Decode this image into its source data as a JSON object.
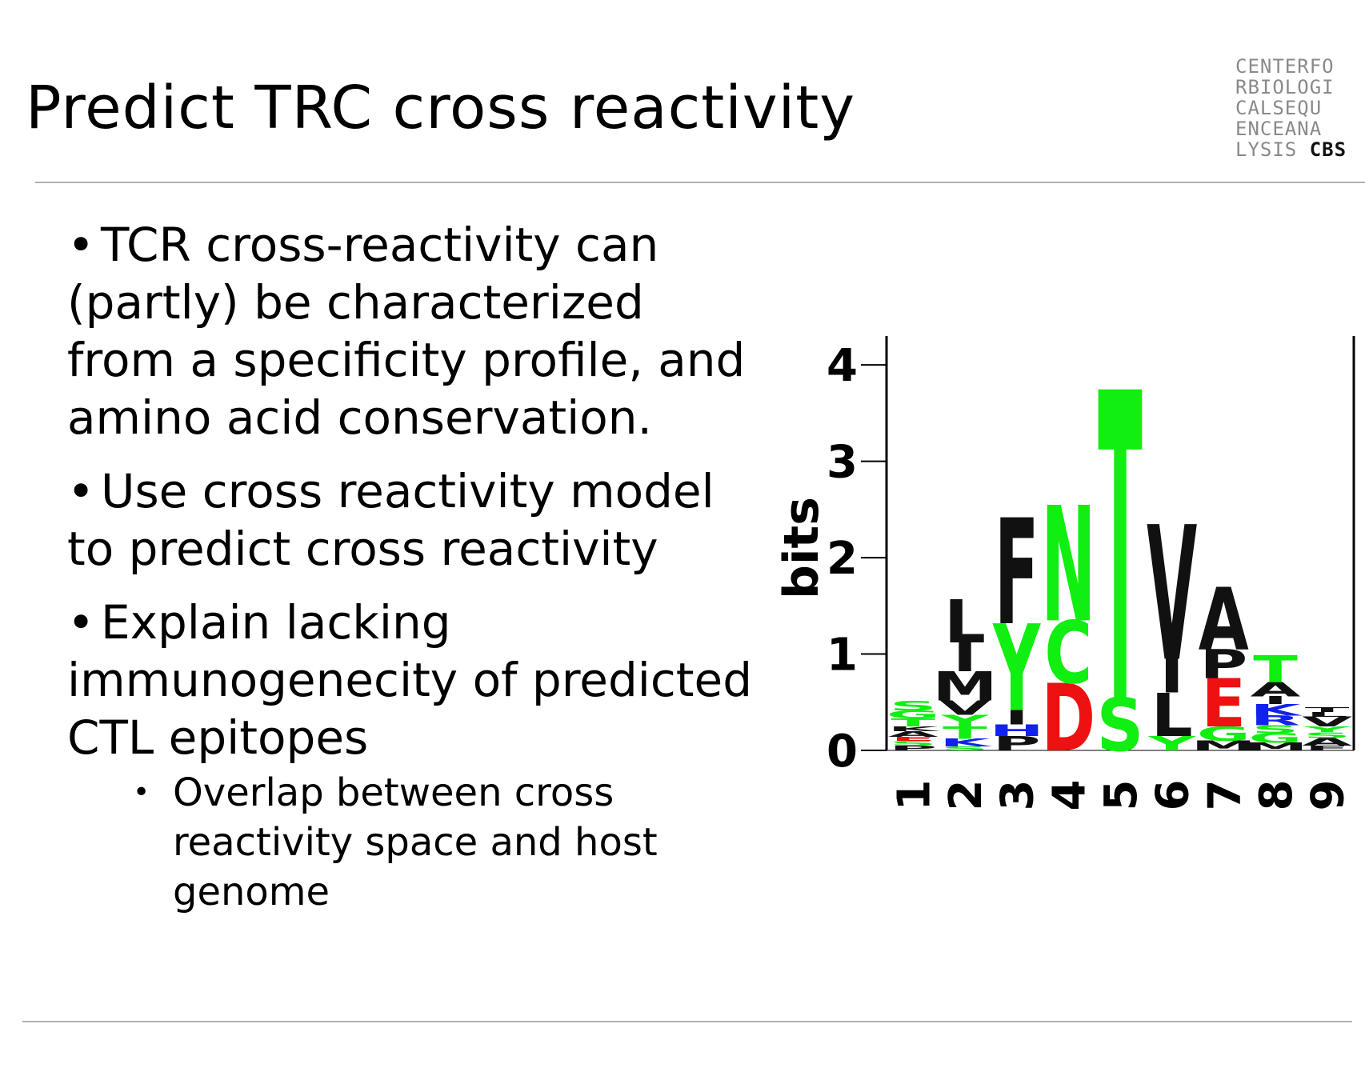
{
  "slide": {
    "title": "Predict TRC cross reactivity",
    "logo_lines": [
      "CENTERFO",
      "RBIOLOGI",
      "CALSEQU",
      "ENCEANA",
      "LYSIS"
    ],
    "logo_brand": "CBS"
  },
  "bullets": [
    {
      "text": "TCR cross-reactivity can (partly) be characterized from a specificity profile, and amino acid conservation."
    },
    {
      "text": "Use cross reactivity model to predict cross reactivity"
    },
    {
      "text": "Explain lacking immunogenecity of predicted CTL epitopes"
    }
  ],
  "sub_bullet": {
    "text": "Overlap between cross reactivity space and host genome"
  },
  "chart_data": {
    "type": "sequence_logo",
    "ylabel": "bits",
    "ylim": [
      0,
      4.3
    ],
    "yticks": [
      0,
      1,
      2,
      3,
      4
    ],
    "positions": [
      "1",
      "2",
      "3",
      "4",
      "5",
      "6",
      "7",
      "8",
      "9"
    ],
    "colors": {
      "green": "#11ee11",
      "black": "#111111",
      "red": "#ee1111",
      "blue": "#1122ee",
      "orange": "#ee8800",
      "purple": "#aa22aa"
    },
    "stacks": [
      {
        "position": "1",
        "letters": [
          {
            "aa": "P",
            "bits": 0.05,
            "color": "black"
          },
          {
            "aa": "S",
            "bits": 0.05,
            "color": "green"
          },
          {
            "aa": "E",
            "bits": 0.04,
            "color": "red"
          },
          {
            "aa": "A",
            "bits": 0.06,
            "color": "black"
          },
          {
            "aa": "K",
            "bits": 0.05,
            "color": "black"
          },
          {
            "aa": "T",
            "bits": 0.08,
            "color": "green"
          },
          {
            "aa": "G",
            "bits": 0.08,
            "color": "green"
          },
          {
            "aa": "S",
            "bits": 0.1,
            "color": "green"
          }
        ]
      },
      {
        "position": "2",
        "letters": [
          {
            "aa": "S",
            "bits": 0.04,
            "color": "green"
          },
          {
            "aa": "K",
            "bits": 0.08,
            "color": "blue"
          },
          {
            "aa": "T",
            "bits": 0.13,
            "color": "green"
          },
          {
            "aa": "Y",
            "bits": 0.12,
            "color": "green"
          },
          {
            "aa": "V",
            "bits": 0.15,
            "color": "black"
          },
          {
            "aa": "M",
            "bits": 0.3,
            "color": "black"
          },
          {
            "aa": "I",
            "bits": 0.3,
            "color": "black"
          },
          {
            "aa": "L",
            "bits": 0.45,
            "color": "black"
          }
        ]
      },
      {
        "position": "3",
        "letters": [
          {
            "aa": "P",
            "bits": 0.15,
            "color": "black"
          },
          {
            "aa": "H",
            "bits": 0.12,
            "color": "blue"
          },
          {
            "aa": "I",
            "bits": 0.15,
            "color": "black"
          },
          {
            "aa": "Y",
            "bits": 0.9,
            "color": "green"
          },
          {
            "aa": "F",
            "bits": 1.1,
            "color": "black"
          }
        ]
      },
      {
        "position": "4",
        "letters": [
          {
            "aa": "D",
            "bits": 0.7,
            "color": "red"
          },
          {
            "aa": "C",
            "bits": 0.65,
            "color": "green"
          },
          {
            "aa": "N",
            "bits": 1.2,
            "color": "green"
          }
        ]
      },
      {
        "position": "5",
        "letters": [
          {
            "aa": "S",
            "bits": 0.55,
            "color": "green"
          },
          {
            "aa": "T",
            "bits": 3.2,
            "color": "green"
          }
        ]
      },
      {
        "position": "6",
        "letters": [
          {
            "aa": "Y",
            "bits": 0.15,
            "color": "green"
          },
          {
            "aa": "L",
            "bits": 0.45,
            "color": "black"
          },
          {
            "aa": "I",
            "bits": 0.35,
            "color": "black"
          },
          {
            "aa": "V",
            "bits": 1.4,
            "color": "black"
          }
        ]
      },
      {
        "position": "7",
        "letters": [
          {
            "aa": "M",
            "bits": 0.1,
            "color": "black"
          },
          {
            "aa": "G",
            "bits": 0.15,
            "color": "green"
          },
          {
            "aa": "E",
            "bits": 0.5,
            "color": "red"
          },
          {
            "aa": "P",
            "bits": 0.3,
            "color": "black"
          },
          {
            "aa": "A",
            "bits": 0.65,
            "color": "black"
          }
        ]
      },
      {
        "position": "8",
        "letters": [
          {
            "aa": "M",
            "bits": 0.08,
            "color": "black"
          },
          {
            "aa": "G",
            "bits": 0.1,
            "color": "green"
          },
          {
            "aa": "S",
            "bits": 0.08,
            "color": "green"
          },
          {
            "aa": "R",
            "bits": 0.1,
            "color": "blue"
          },
          {
            "aa": "K",
            "bits": 0.12,
            "color": "blue"
          },
          {
            "aa": "I",
            "bits": 0.08,
            "color": "black"
          },
          {
            "aa": "A",
            "bits": 0.15,
            "color": "black"
          },
          {
            "aa": "T",
            "bits": 0.28,
            "color": "green"
          }
        ]
      },
      {
        "position": "9",
        "letters": [
          {
            "aa": "F",
            "bits": 0.05,
            "color": "black"
          },
          {
            "aa": "A",
            "bits": 0.08,
            "color": "black"
          },
          {
            "aa": "S",
            "bits": 0.06,
            "color": "green"
          },
          {
            "aa": "Y",
            "bits": 0.06,
            "color": "green"
          },
          {
            "aa": "V",
            "bits": 0.1,
            "color": "black"
          },
          {
            "aa": "L",
            "bits": 0.05,
            "color": "black"
          },
          {
            "aa": "T",
            "bits": 0.05,
            "color": "black"
          }
        ]
      }
    ]
  }
}
